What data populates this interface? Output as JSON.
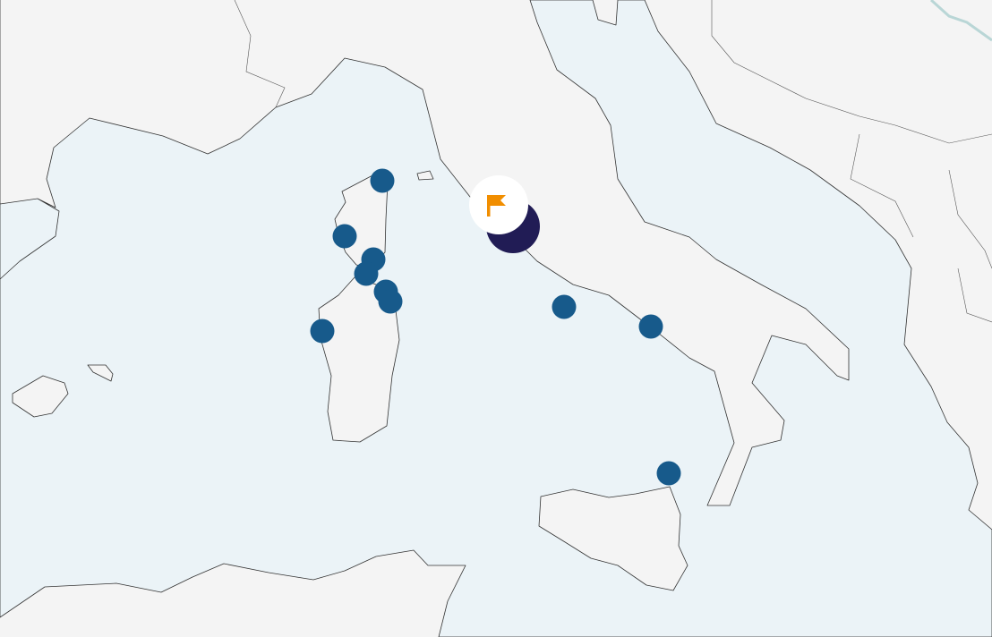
{
  "map": {
    "colors": {
      "land": "#f4f4f4",
      "sea": "#ebf3f7",
      "coastline": "#333333",
      "marker": "#175a8b",
      "cluster": "#211c55",
      "flag": "#f18e00",
      "popup": "#ffffff"
    },
    "marker_icon": "circle-marker",
    "selected_icon": "flag-icon",
    "marker_count": 10,
    "cluster_count": 1
  }
}
